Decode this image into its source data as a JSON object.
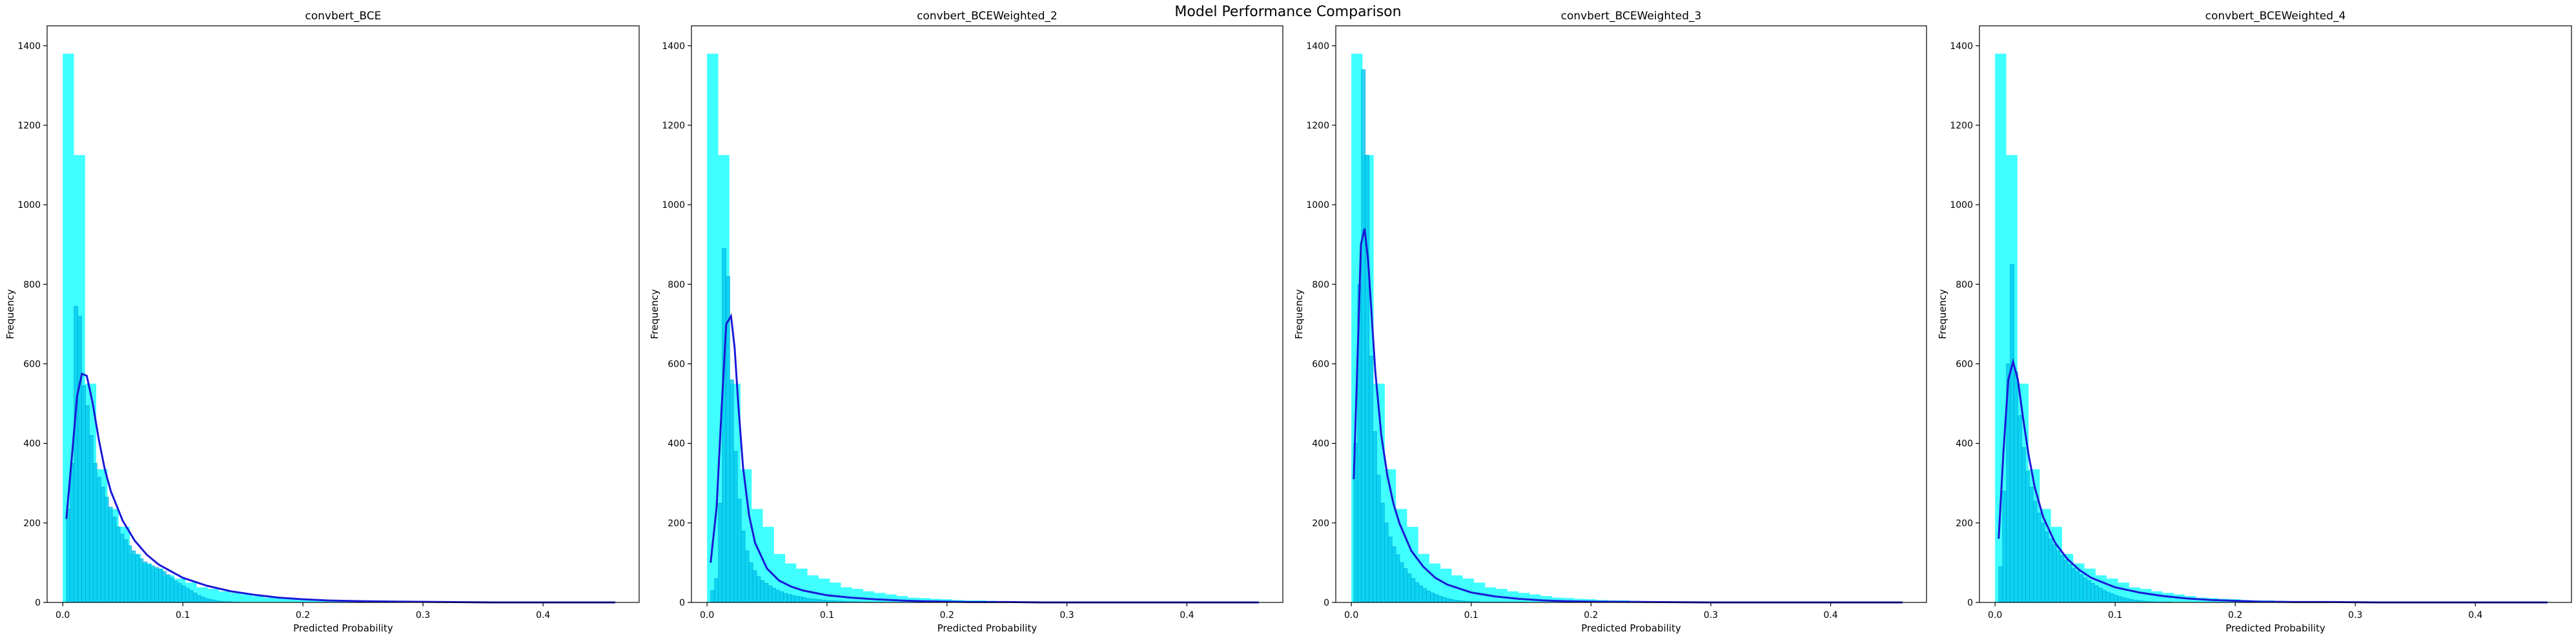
{
  "figure": {
    "suptitle": "Model Performance Comparison"
  },
  "chart_data": [
    {
      "type": "bar",
      "title": "convbert_BCE",
      "xlabel": "Predicted Probability",
      "ylabel": "Frequency",
      "xlim": [
        -0.013,
        0.48
      ],
      "ylim": [
        0,
        1450
      ],
      "xticks": [
        0.0,
        0.1,
        0.2,
        0.3,
        0.4
      ],
      "xtick_labels": [
        "0.0",
        "0.1",
        "0.2",
        "0.3",
        "0.4"
      ],
      "yticks": [
        0,
        200,
        400,
        600,
        800,
        1000,
        1200,
        1400
      ],
      "ytick_labels": [
        "0",
        "200",
        "400",
        "600",
        "800",
        "1000",
        "1200",
        "1400"
      ],
      "grid": false,
      "legend": "none",
      "series": [
        {
          "kind": "hist",
          "color": "#00ffff",
          "opacity": 0.75,
          "bin_width": 0.0093,
          "start": 0.0,
          "counts": [
            1380,
            1125,
            550,
            335,
            235,
            190,
            122,
            98,
            85,
            68,
            60,
            50,
            38,
            34,
            28,
            24,
            20,
            16,
            12,
            11,
            9,
            8,
            6,
            5,
            5,
            4,
            3,
            3,
            2,
            2,
            2,
            1,
            1,
            1,
            1,
            1,
            1,
            1,
            1,
            1,
            1,
            1,
            1,
            1,
            1,
            1,
            1,
            1,
            1,
            1
          ]
        },
        {
          "kind": "hist",
          "color": "#00c8ee",
          "opacity": 0.8,
          "bin_width": 0.0032,
          "start": 0.003,
          "counts": [
            235,
            350,
            745,
            720,
            545,
            495,
            420,
            350,
            315,
            290,
            265,
            240,
            215,
            190,
            172,
            158,
            143,
            130,
            120,
            110,
            102,
            96,
            92,
            88,
            84,
            78,
            70,
            62,
            54,
            48,
            42,
            36,
            30,
            24,
            18,
            14,
            10,
            8,
            6,
            4,
            3,
            2,
            2,
            1,
            1
          ]
        },
        {
          "kind": "kde",
          "color": "#1a1ad6",
          "x": [
            0.003,
            0.008,
            0.012,
            0.016,
            0.02,
            0.025,
            0.03,
            0.035,
            0.04,
            0.05,
            0.06,
            0.07,
            0.08,
            0.1,
            0.12,
            0.14,
            0.16,
            0.18,
            0.2,
            0.22,
            0.25,
            0.28,
            0.32,
            0.36,
            0.4,
            0.44,
            0.46
          ],
          "y": [
            210,
            380,
            520,
            575,
            570,
            500,
            410,
            335,
            280,
            205,
            155,
            120,
            95,
            62,
            42,
            28,
            19,
            12,
            8,
            5,
            3,
            2,
            1,
            0,
            0,
            0,
            0
          ]
        }
      ]
    },
    {
      "type": "bar",
      "title": "convbert_BCEWeighted_2",
      "xlabel": "Predicted Probability",
      "ylabel": "Frequency",
      "xlim": [
        -0.013,
        0.48
      ],
      "ylim": [
        0,
        1450
      ],
      "xticks": [
        0.0,
        0.1,
        0.2,
        0.3,
        0.4
      ],
      "xtick_labels": [
        "0.0",
        "0.1",
        "0.2",
        "0.3",
        "0.4"
      ],
      "yticks": [
        0,
        200,
        400,
        600,
        800,
        1000,
        1200,
        1400
      ],
      "ytick_labels": [
        "0",
        "200",
        "400",
        "600",
        "800",
        "1000",
        "1200",
        "1400"
      ],
      "grid": false,
      "legend": "none",
      "series": [
        {
          "kind": "hist",
          "color": "#00ffff",
          "opacity": 0.75,
          "bin_width": 0.0093,
          "start": 0.0,
          "counts": [
            1380,
            1125,
            550,
            335,
            235,
            190,
            122,
            98,
            85,
            68,
            60,
            50,
            38,
            34,
            28,
            24,
            20,
            16,
            12,
            11,
            9,
            8,
            6,
            5,
            5,
            4,
            3,
            3,
            2,
            2,
            2,
            1,
            1,
            1,
            1,
            1,
            1,
            1,
            1,
            1,
            1,
            1,
            1,
            1,
            1,
            1,
            1,
            1,
            1,
            1
          ]
        },
        {
          "kind": "hist",
          "color": "#00c8ee",
          "opacity": 0.8,
          "bin_width": 0.0032,
          "start": 0.003,
          "counts": [
            30,
            60,
            250,
            890,
            820,
            560,
            380,
            260,
            180,
            130,
            100,
            80,
            65,
            55,
            48,
            42,
            36,
            31,
            27,
            23,
            20,
            18,
            16,
            14,
            12,
            10,
            9,
            8,
            7,
            6,
            5,
            5,
            4,
            4,
            3,
            3,
            2,
            2,
            2,
            1,
            1,
            1,
            1,
            1,
            1
          ]
        },
        {
          "kind": "kde",
          "color": "#1a1ad6",
          "x": [
            0.003,
            0.008,
            0.012,
            0.016,
            0.02,
            0.023,
            0.026,
            0.03,
            0.035,
            0.04,
            0.05,
            0.06,
            0.07,
            0.08,
            0.1,
            0.12,
            0.14,
            0.16,
            0.18,
            0.2,
            0.22,
            0.25,
            0.28,
            0.32,
            0.36,
            0.4,
            0.44,
            0.46
          ],
          "y": [
            100,
            240,
            480,
            700,
            720,
            640,
            500,
            340,
            220,
            150,
            85,
            55,
            40,
            30,
            18,
            12,
            8,
            5,
            3,
            2,
            1,
            1,
            0,
            0,
            0,
            0,
            0,
            0
          ]
        }
      ]
    },
    {
      "type": "bar",
      "title": "convbert_BCEWeighted_3",
      "xlabel": "Predicted Probability",
      "ylabel": "Frequency",
      "xlim": [
        -0.013,
        0.48
      ],
      "ylim": [
        0,
        1450
      ],
      "xticks": [
        0.0,
        0.1,
        0.2,
        0.3,
        0.4
      ],
      "xtick_labels": [
        "0.0",
        "0.1",
        "0.2",
        "0.3",
        "0.4"
      ],
      "yticks": [
        0,
        200,
        400,
        600,
        800,
        1000,
        1200,
        1400
      ],
      "ytick_labels": [
        "0",
        "200",
        "400",
        "600",
        "800",
        "1000",
        "1200",
        "1400"
      ],
      "grid": false,
      "legend": "none",
      "series": [
        {
          "kind": "hist",
          "color": "#00ffff",
          "opacity": 0.75,
          "bin_width": 0.0093,
          "start": 0.0,
          "counts": [
            1380,
            1125,
            550,
            335,
            235,
            190,
            122,
            98,
            85,
            68,
            60,
            50,
            38,
            34,
            28,
            24,
            20,
            16,
            12,
            11,
            9,
            8,
            6,
            5,
            5,
            4,
            3,
            3,
            2,
            2,
            2,
            1,
            1,
            1,
            1,
            1,
            1,
            1,
            1,
            1,
            1,
            1,
            1,
            1,
            1,
            1,
            1,
            1,
            1,
            1
          ]
        },
        {
          "kind": "hist",
          "color": "#00c8ee",
          "opacity": 0.8,
          "bin_width": 0.0032,
          "start": 0.002,
          "counts": [
            400,
            800,
            1340,
            1125,
            620,
            430,
            320,
            250,
            200,
            165,
            140,
            120,
            100,
            85,
            72,
            60,
            50,
            42,
            35,
            29,
            24,
            20,
            16,
            13,
            10,
            8,
            6,
            5,
            4,
            3,
            3,
            2,
            2,
            1,
            1,
            1,
            1,
            1,
            1,
            1,
            1,
            1,
            1,
            1,
            1
          ]
        },
        {
          "kind": "kde",
          "color": "#1a1ad6",
          "x": [
            0.002,
            0.005,
            0.008,
            0.011,
            0.014,
            0.017,
            0.02,
            0.025,
            0.03,
            0.035,
            0.04,
            0.05,
            0.06,
            0.07,
            0.08,
            0.1,
            0.12,
            0.14,
            0.16,
            0.18,
            0.2,
            0.25,
            0.3,
            0.35,
            0.4,
            0.46
          ],
          "y": [
            310,
            600,
            900,
            940,
            860,
            720,
            580,
            420,
            320,
            250,
            200,
            130,
            90,
            62,
            45,
            25,
            15,
            9,
            5,
            3,
            2,
            1,
            0,
            0,
            0,
            0
          ]
        }
      ]
    },
    {
      "type": "bar",
      "title": "convbert_BCEWeighted_4",
      "xlabel": "Predicted Probability",
      "ylabel": "Frequency",
      "xlim": [
        -0.013,
        0.48
      ],
      "ylim": [
        0,
        1450
      ],
      "xticks": [
        0.0,
        0.1,
        0.2,
        0.3,
        0.4
      ],
      "xtick_labels": [
        "0.0",
        "0.1",
        "0.2",
        "0.3",
        "0.4"
      ],
      "yticks": [
        0,
        200,
        400,
        600,
        800,
        1000,
        1200,
        1400
      ],
      "ytick_labels": [
        "0",
        "200",
        "400",
        "600",
        "800",
        "1000",
        "1200",
        "1400"
      ],
      "grid": false,
      "legend": "none",
      "series": [
        {
          "kind": "hist",
          "color": "#00ffff",
          "opacity": 0.75,
          "bin_width": 0.0093,
          "start": 0.0,
          "counts": [
            1380,
            1125,
            550,
            335,
            235,
            190,
            122,
            98,
            85,
            68,
            60,
            50,
            38,
            34,
            28,
            24,
            20,
            16,
            12,
            11,
            9,
            8,
            6,
            5,
            5,
            4,
            3,
            3,
            2,
            2,
            2,
            1,
            1,
            1,
            1,
            1,
            1,
            1,
            1,
            1,
            1,
            1,
            1,
            1,
            1,
            1,
            1,
            1,
            1,
            1
          ]
        },
        {
          "kind": "hist",
          "color": "#00c8ee",
          "opacity": 0.8,
          "bin_width": 0.0032,
          "start": 0.003,
          "counts": [
            90,
            280,
            600,
            850,
            580,
            470,
            390,
            330,
            290,
            255,
            225,
            200,
            178,
            160,
            145,
            130,
            118,
            106,
            96,
            86,
            78,
            70,
            62,
            55,
            48,
            42,
            36,
            31,
            26,
            22,
            18,
            15,
            12,
            10,
            8,
            6,
            5,
            4,
            3,
            2,
            2,
            1,
            1,
            1,
            1
          ]
        },
        {
          "kind": "kde",
          "color": "#1a1ad6",
          "x": [
            0.003,
            0.007,
            0.011,
            0.015,
            0.019,
            0.023,
            0.028,
            0.033,
            0.04,
            0.05,
            0.06,
            0.07,
            0.08,
            0.1,
            0.12,
            0.14,
            0.16,
            0.18,
            0.2,
            0.22,
            0.25,
            0.28,
            0.32,
            0.36,
            0.4,
            0.46
          ],
          "y": [
            160,
            380,
            560,
            605,
            560,
            470,
            370,
            290,
            215,
            150,
            110,
            82,
            62,
            38,
            25,
            16,
            10,
            6,
            4,
            2,
            1,
            1,
            0,
            0,
            0,
            0
          ]
        }
      ]
    }
  ]
}
